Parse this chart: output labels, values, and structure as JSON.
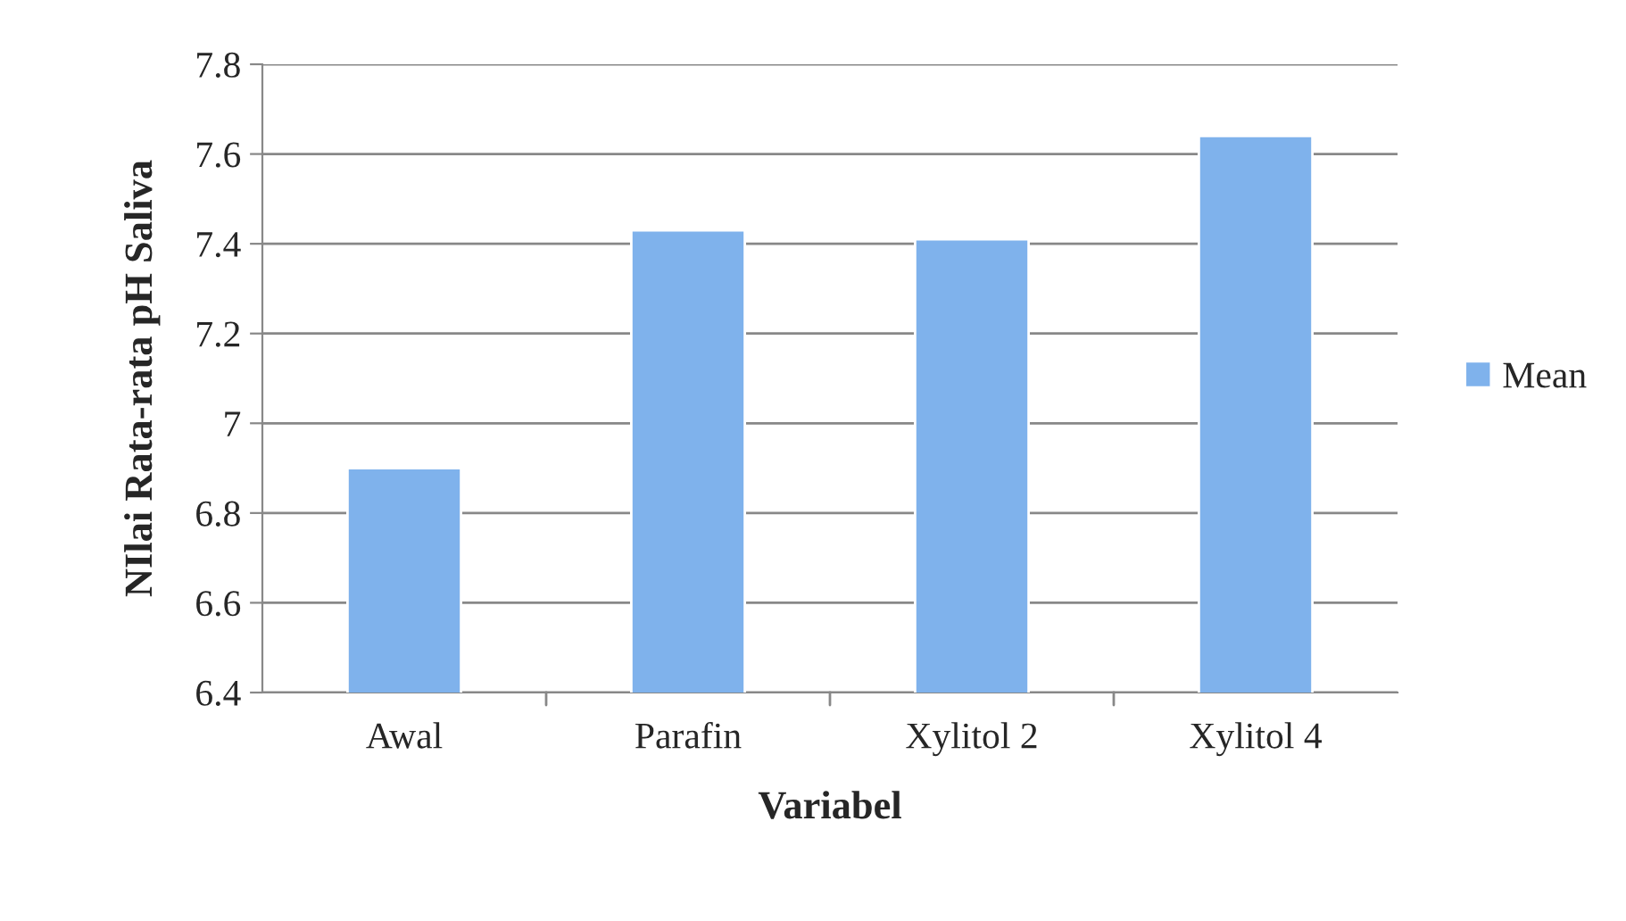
{
  "chart_data": {
    "type": "bar",
    "xlabel": "Variabel",
    "ylabel": "NIlai Rata-rata pH Saliva",
    "categories": [
      "Awal",
      "Parafin",
      "Xylitol 2",
      "Xylitol 4"
    ],
    "series": [
      {
        "name": "Mean",
        "color": "#7fb2ec",
        "values": [
          6.9,
          7.43,
          7.41,
          7.64
        ]
      }
    ],
    "ylim": [
      6.4,
      7.8
    ],
    "yticks": [
      6.4,
      6.6,
      6.8,
      7,
      7.2,
      7.4,
      7.6,
      7.8
    ],
    "grid": "y",
    "legend": "right"
  }
}
